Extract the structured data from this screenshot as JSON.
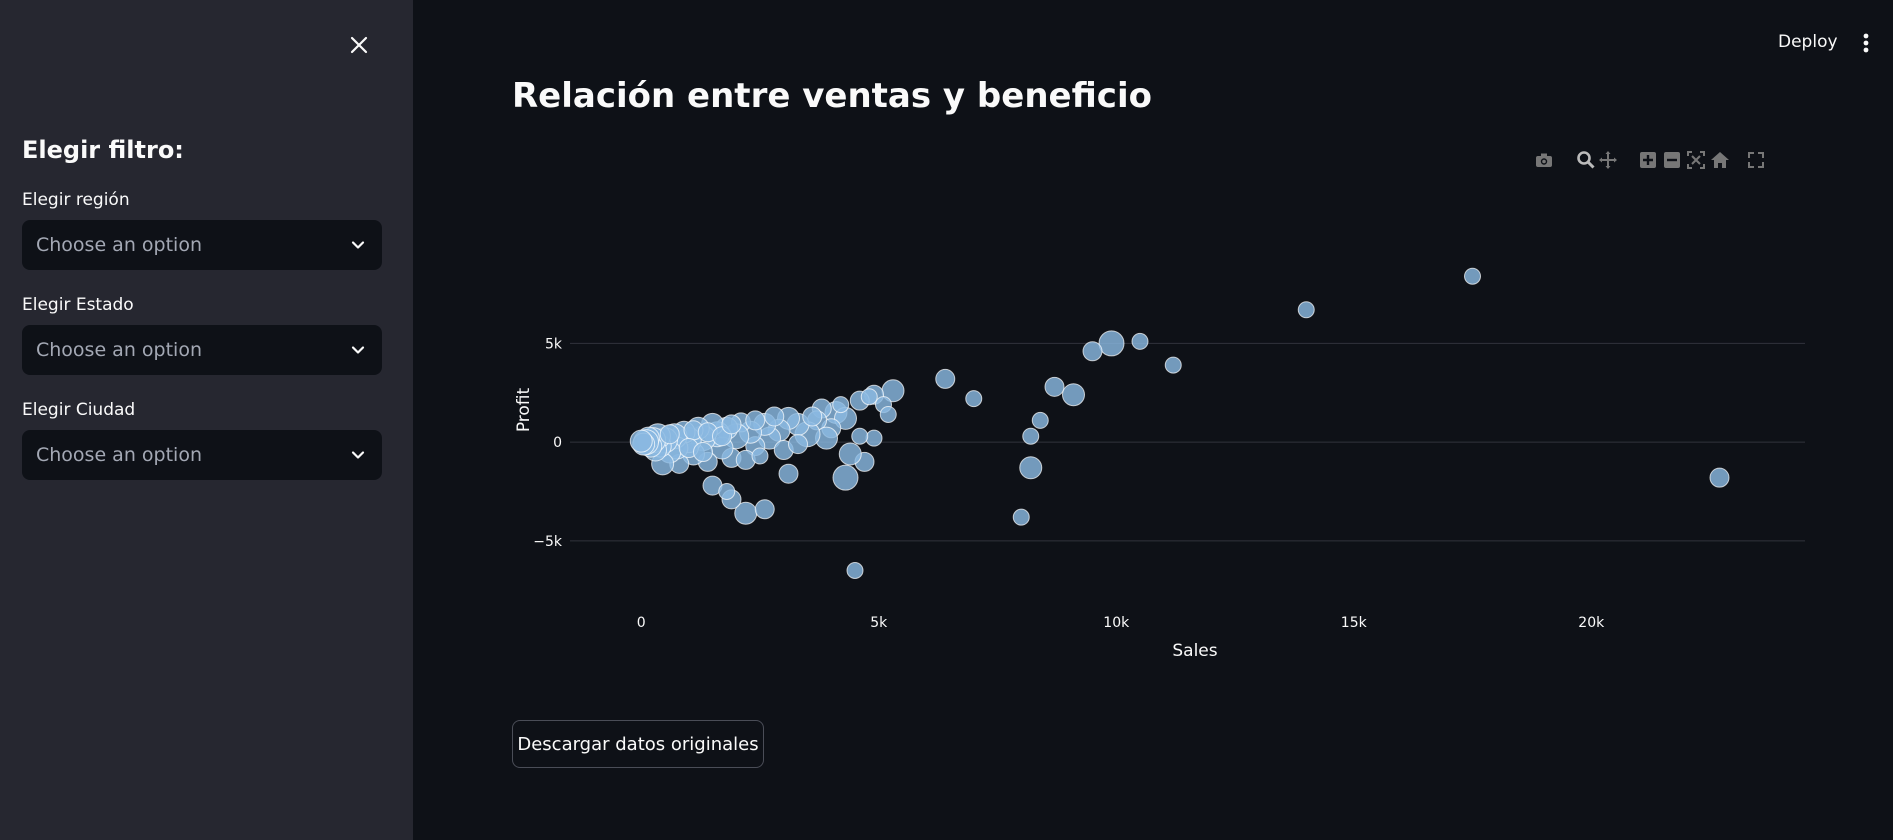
{
  "sidebar": {
    "heading": "Elegir filtro:",
    "filters": [
      {
        "label": "Elegir región",
        "placeholder": "Choose an option"
      },
      {
        "label": "Elegir Estado",
        "placeholder": "Choose an option"
      },
      {
        "label": "Elegir Ciudad",
        "placeholder": "Choose an option"
      }
    ]
  },
  "header": {
    "deploy_label": "Deploy"
  },
  "main": {
    "title": "Relación entre ventas y beneficio",
    "download_label": "Descargar datos originales"
  },
  "modebar_icons": [
    "camera-icon",
    "zoom-icon",
    "pan-icon",
    "zoom-in-icon",
    "zoom-out-icon",
    "autoscale-icon",
    "home-icon",
    "fullscreen-icon"
  ],
  "colors": {
    "marker": "#8ab8e0",
    "marker_outline": "#ffffff",
    "grid": "#31333c"
  },
  "chart_data": {
    "type": "scatter",
    "xlabel": "Sales",
    "ylabel": "Profit",
    "xlim": [
      -1500,
      24500
    ],
    "ylim": [
      -8500,
      11500
    ],
    "xticks": [
      0,
      5000,
      10000,
      15000,
      20000
    ],
    "xtick_labels": [
      "0",
      "5k",
      "10k",
      "15k",
      "20k"
    ],
    "yticks": [
      -5000,
      0,
      5000
    ],
    "ytick_labels": [
      "−5k",
      "0",
      "5k"
    ],
    "grid": true,
    "points": [
      {
        "x": 17500,
        "y": 8400,
        "s": 2
      },
      {
        "x": 14000,
        "y": 6700,
        "s": 2
      },
      {
        "x": 9900,
        "y": 5000,
        "s": 5
      },
      {
        "x": 10500,
        "y": 5100,
        "s": 2
      },
      {
        "x": 9500,
        "y": 4600,
        "s": 3
      },
      {
        "x": 11200,
        "y": 3900,
        "s": 2
      },
      {
        "x": 6400,
        "y": 3200,
        "s": 3
      },
      {
        "x": 8700,
        "y": 2800,
        "s": 3
      },
      {
        "x": 9100,
        "y": 2400,
        "s": 4
      },
      {
        "x": 7000,
        "y": 2200,
        "s": 2
      },
      {
        "x": 5300,
        "y": 2600,
        "s": 4
      },
      {
        "x": 4900,
        "y": 2400,
        "s": 3
      },
      {
        "x": 5100,
        "y": 1900,
        "s": 2
      },
      {
        "x": 5200,
        "y": 1400,
        "s": 2
      },
      {
        "x": 8400,
        "y": 1100,
        "s": 2
      },
      {
        "x": 8200,
        "y": 300,
        "s": 2
      },
      {
        "x": 8200,
        "y": -1300,
        "s": 4
      },
      {
        "x": 8000,
        "y": -3800,
        "s": 2
      },
      {
        "x": 22700,
        "y": -1800,
        "s": 3
      },
      {
        "x": 4500,
        "y": -6500,
        "s": 2
      },
      {
        "x": 4300,
        "y": -1800,
        "s": 5
      },
      {
        "x": 4700,
        "y": -1000,
        "s": 3
      },
      {
        "x": 4400,
        "y": -600,
        "s": 4
      },
      {
        "x": 4900,
        "y": 200,
        "s": 2
      },
      {
        "x": 3100,
        "y": -1600,
        "s": 3
      },
      {
        "x": 2200,
        "y": -3600,
        "s": 4
      },
      {
        "x": 2600,
        "y": -3400,
        "s": 3
      },
      {
        "x": 1900,
        "y": -2900,
        "s": 3
      },
      {
        "x": 1500,
        "y": -2200,
        "s": 3
      },
      {
        "x": 1800,
        "y": -2500,
        "s": 2
      },
      {
        "x": 4100,
        "y": 1500,
        "s": 4
      },
      {
        "x": 3800,
        "y": 1700,
        "s": 3
      },
      {
        "x": 4600,
        "y": 2100,
        "s": 3
      },
      {
        "x": 4300,
        "y": 1200,
        "s": 4
      },
      {
        "x": 4000,
        "y": 700,
        "s": 3
      },
      {
        "x": 3700,
        "y": 1100,
        "s": 3
      },
      {
        "x": 3900,
        "y": 200,
        "s": 4
      },
      {
        "x": 3500,
        "y": 400,
        "s": 5
      },
      {
        "x": 3300,
        "y": 900,
        "s": 4
      },
      {
        "x": 3100,
        "y": 1200,
        "s": 4
      },
      {
        "x": 2900,
        "y": 600,
        "s": 4
      },
      {
        "x": 2700,
        "y": 200,
        "s": 4
      },
      {
        "x": 2600,
        "y": 900,
        "s": 4
      },
      {
        "x": 2400,
        "y": -200,
        "s": 3
      },
      {
        "x": 2300,
        "y": 500,
        "s": 4
      },
      {
        "x": 2100,
        "y": 1000,
        "s": 3
      },
      {
        "x": 2000,
        "y": 300,
        "s": 5
      },
      {
        "x": 1900,
        "y": -800,
        "s": 3
      },
      {
        "x": 1800,
        "y": 700,
        "s": 4
      },
      {
        "x": 1700,
        "y": -300,
        "s": 4
      },
      {
        "x": 1600,
        "y": 400,
        "s": 5
      },
      {
        "x": 1500,
        "y": 900,
        "s": 4
      },
      {
        "x": 1400,
        "y": -1000,
        "s": 3
      },
      {
        "x": 1300,
        "y": 200,
        "s": 5
      },
      {
        "x": 1200,
        "y": 700,
        "s": 4
      },
      {
        "x": 1100,
        "y": -600,
        "s": 4
      },
      {
        "x": 1000,
        "y": 100,
        "s": 5
      },
      {
        "x": 900,
        "y": 500,
        "s": 4
      },
      {
        "x": 800,
        "y": -1100,
        "s": 3
      },
      {
        "x": 750,
        "y": -300,
        "s": 4
      },
      {
        "x": 700,
        "y": 300,
        "s": 5
      },
      {
        "x": 600,
        "y": -500,
        "s": 4
      },
      {
        "x": 500,
        "y": 100,
        "s": 5
      },
      {
        "x": 450,
        "y": -1100,
        "s": 4
      },
      {
        "x": 400,
        "y": -200,
        "s": 4
      },
      {
        "x": 350,
        "y": 300,
        "s": 5
      },
      {
        "x": 300,
        "y": -400,
        "s": 4
      },
      {
        "x": 250,
        "y": 100,
        "s": 5
      },
      {
        "x": 200,
        "y": -200,
        "s": 4
      },
      {
        "x": 150,
        "y": 200,
        "s": 4
      },
      {
        "x": 100,
        "y": 0,
        "s": 5
      },
      {
        "x": 50,
        "y": -100,
        "s": 4
      },
      {
        "x": 0,
        "y": 50,
        "s": 4
      },
      {
        "x": 1100,
        "y": 600,
        "s": 3
      },
      {
        "x": 1400,
        "y": 500,
        "s": 3
      },
      {
        "x": 1700,
        "y": 300,
        "s": 3
      },
      {
        "x": 2200,
        "y": -900,
        "s": 3
      },
      {
        "x": 2500,
        "y": -700,
        "s": 2
      },
      {
        "x": 3000,
        "y": -400,
        "s": 3
      },
      {
        "x": 3300,
        "y": -100,
        "s": 3
      },
      {
        "x": 3600,
        "y": 1300,
        "s": 3
      },
      {
        "x": 2800,
        "y": 1300,
        "s": 3
      },
      {
        "x": 2400,
        "y": 1100,
        "s": 3
      },
      {
        "x": 1900,
        "y": 900,
        "s": 3
      },
      {
        "x": 600,
        "y": 400,
        "s": 3
      },
      {
        "x": 1000,
        "y": -300,
        "s": 3
      },
      {
        "x": 1300,
        "y": -500,
        "s": 3
      },
      {
        "x": 4600,
        "y": 300,
        "s": 2
      },
      {
        "x": 4200,
        "y": 1900,
        "s": 2
      },
      {
        "x": 4800,
        "y": 2300,
        "s": 2
      }
    ]
  }
}
